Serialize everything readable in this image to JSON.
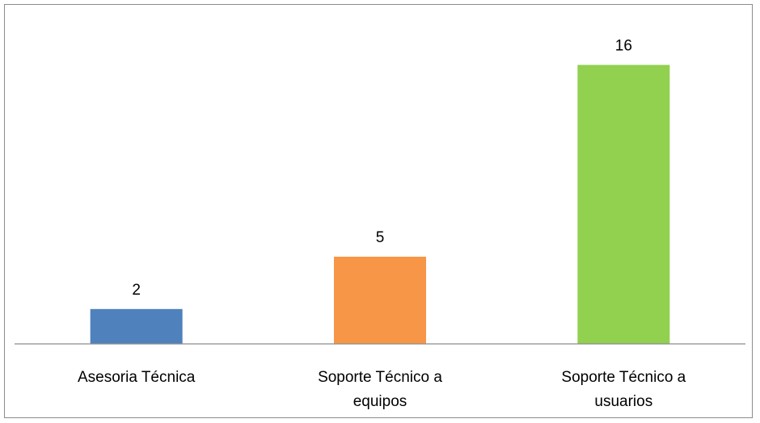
{
  "chart_data": {
    "type": "bar",
    "categories": [
      [
        "Asesoria Técnica"
      ],
      [
        "Soporte Técnico a",
        "equipos"
      ],
      [
        "Soporte Técnico a",
        "usuarios"
      ]
    ],
    "values": [
      2,
      5,
      16
    ],
    "data_labels": [
      "2",
      "5",
      "16"
    ],
    "colors": [
      "#4F81BD",
      "#F79646",
      "#92D050"
    ],
    "axis_color": "#8C8C8C",
    "grid": false,
    "legend": "none"
  }
}
